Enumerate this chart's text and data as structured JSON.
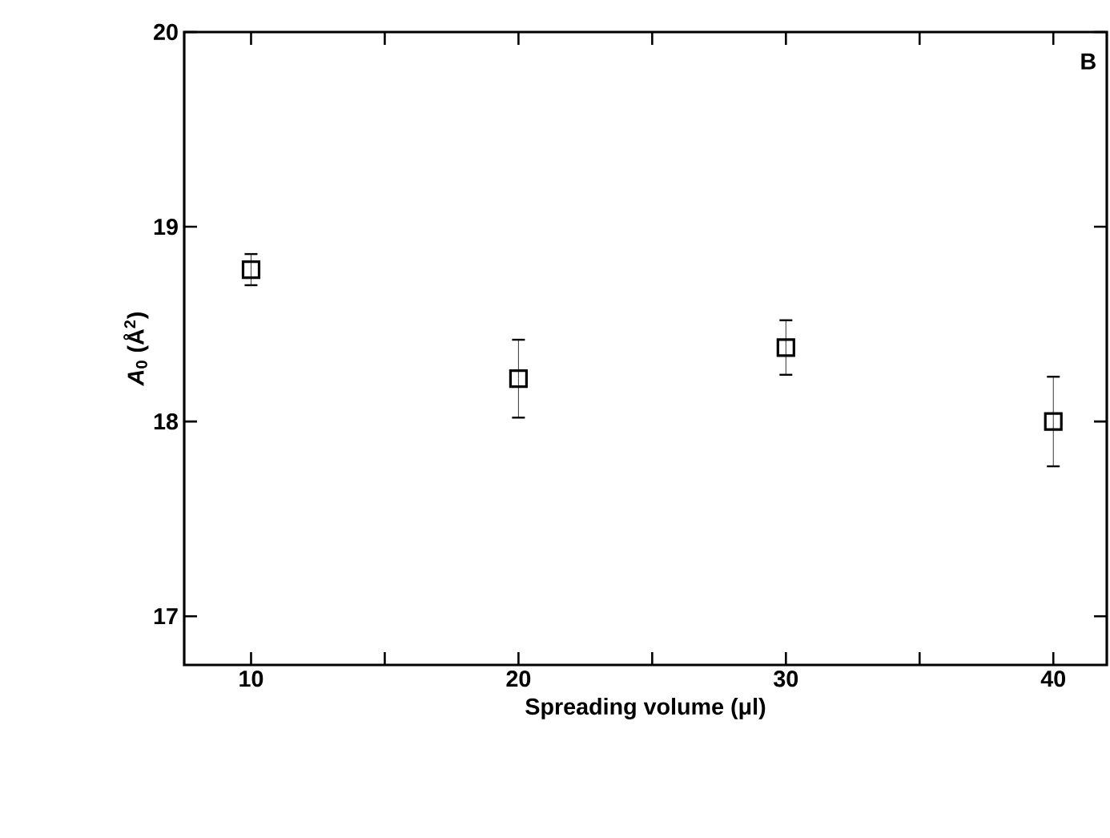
{
  "chart_data": {
    "type": "scatter",
    "xlabel": "Spreading volume (μl)",
    "ylabel": "*A*$_{0}$ (Å$^{2}$)",
    "x": [
      10,
      20,
      30,
      40
    ],
    "values": [
      18.78,
      18.22,
      18.38,
      18.0
    ],
    "errors": [
      0.08,
      0.2,
      0.14,
      0.23
    ],
    "color": "#000000",
    "marker": "square",
    "xlim": [
      7.5,
      42
    ],
    "ylim": [
      16.75,
      20
    ],
    "xticks": [
      10,
      {
        "value": 15,
        "label": null
      },
      20,
      {
        "value": 25,
        "label": null
      },
      30,
      {
        "value": 35,
        "label": null
      },
      40
    ],
    "yticks": [
      17,
      18,
      19,
      20
    ],
    "annotations": [
      "B"
    ]
  }
}
